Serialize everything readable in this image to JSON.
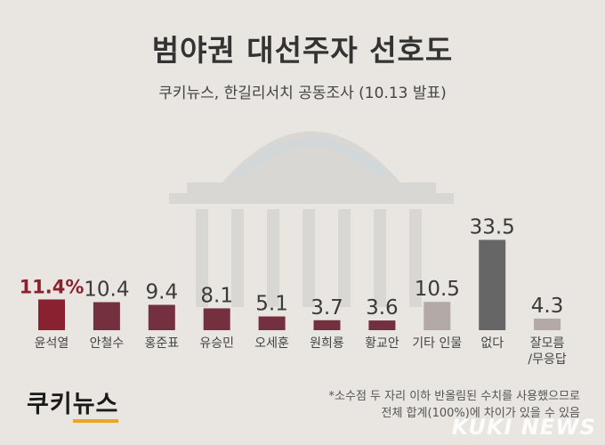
{
  "header": {
    "title": "범야권 대선주자 선호도",
    "subtitle": "쿠키뉴스, 한길리서치 공동조사 (10.13 발표)"
  },
  "brand": {
    "logo_left": "쿠키",
    "logo_right": "뉴스"
  },
  "footnote": {
    "line1": "*소수점 두 자리 이하 반올림된 수치를 사용했으므로",
    "line2": "전체 합계(100%)에 차이가 있을 수 있음"
  },
  "watermark_text": "KUKI NEWS",
  "colors": {
    "accent_label": "#8a2130",
    "candidate_bar": "#74303f",
    "highlight_bar": "#8a2130",
    "other_bar": "#b3a9a7",
    "none_bar": "#666666",
    "unknown_bar": "#b3a9a7",
    "label_text": "#444444",
    "logo_underline": "#e8a826"
  },
  "chart_data": {
    "type": "bar",
    "title": "범야권 대선주자 선호도",
    "categories": [
      "윤석열",
      "안철수",
      "홍준표",
      "유승민",
      "오세훈",
      "원희룡",
      "황교안",
      "기타 인물",
      "없다",
      "잘모름/무응답"
    ],
    "category_lines": [
      [
        "윤석열"
      ],
      [
        "안철수"
      ],
      [
        "홍준표"
      ],
      [
        "유승민"
      ],
      [
        "오세훈"
      ],
      [
        "원희룡"
      ],
      [
        "황교안"
      ],
      [
        "기타 인물"
      ],
      [
        "없다"
      ],
      [
        "잘모름",
        "/무응답"
      ]
    ],
    "values": [
      11.4,
      10.4,
      9.4,
      8.1,
      5.1,
      3.7,
      3.6,
      10.5,
      33.5,
      4.3
    ],
    "value_labels": [
      "11.4%",
      "10.4",
      "9.4",
      "8.1",
      "5.1",
      "3.7",
      "3.6",
      "10.5",
      "33.5",
      "4.3"
    ],
    "bar_color_keys": [
      "highlight_bar",
      "candidate_bar",
      "candidate_bar",
      "candidate_bar",
      "candidate_bar",
      "candidate_bar",
      "candidate_bar",
      "other_bar",
      "none_bar",
      "unknown_bar"
    ],
    "ylim": [
      0,
      34
    ],
    "grid": false,
    "legend": "none"
  }
}
